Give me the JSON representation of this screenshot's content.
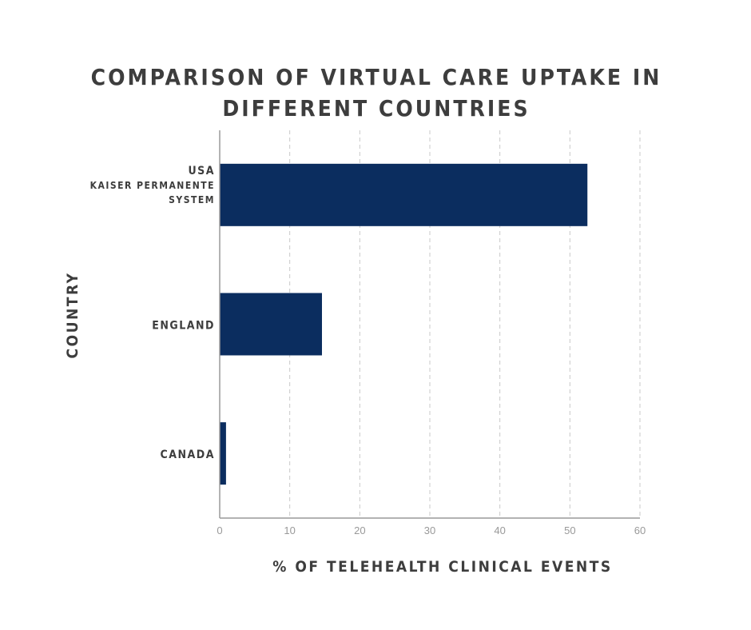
{
  "chart_data": {
    "type": "bar",
    "orientation": "horizontal",
    "title": [
      "COMPARISON OF VIRTUAL CARE UPTAKE IN",
      "DIFFERENT COUNTRIES"
    ],
    "categories": [
      [
        "USA",
        "KAISER PERMANENTE",
        "SYSTEM"
      ],
      [
        "ENGLAND"
      ],
      [
        "CANADA"
      ]
    ],
    "values": [
      52.5,
      14.6,
      0.9
    ],
    "xlabel": "% OF TELEHEALTH CLINICAL EVENTS",
    "ylabel": "COUNTRY",
    "xlim": [
      0,
      60
    ],
    "xticks": [
      0,
      10,
      20,
      30,
      40,
      50,
      60
    ],
    "grid": true,
    "bar_color": "#0b2d5f"
  }
}
